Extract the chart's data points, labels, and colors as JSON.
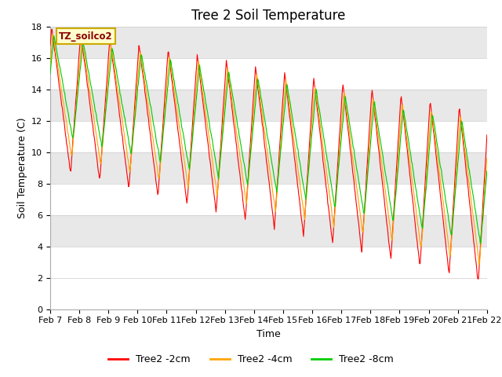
{
  "title": "Tree 2 Soil Temperature",
  "xlabel": "Time",
  "ylabel": "Soil Temperature (C)",
  "ylim": [
    0,
    18
  ],
  "yticks": [
    0,
    2,
    4,
    6,
    8,
    10,
    12,
    14,
    16,
    18
  ],
  "legend_label": "TZ_soilco2",
  "series_labels": [
    "Tree2 -2cm",
    "Tree2 -4cm",
    "Tree2 -8cm"
  ],
  "series_colors": [
    "#ff0000",
    "#ffa500",
    "#00cc00"
  ],
  "background_color": "#ffffff",
  "band_colors": [
    "#ffffff",
    "#ffffff",
    "#e8e8e8",
    "#ffffff",
    "#e8e8e8",
    "#ffffff",
    "#e8e8e8",
    "#ffffff",
    "#e8e8e8"
  ],
  "x_tick_labels": [
    "Feb 7",
    "Feb 8",
    "Feb 9",
    "Feb 10",
    "Feb 11",
    "Feb 12",
    "Feb 13",
    "Feb 14",
    "Feb 15",
    "Feb 16",
    "Feb 17",
    "Feb 18",
    "Feb 19",
    "Feb 20",
    "Feb 21",
    "Feb 22"
  ],
  "title_fontsize": 12,
  "axis_label_fontsize": 9,
  "tick_fontsize": 8
}
